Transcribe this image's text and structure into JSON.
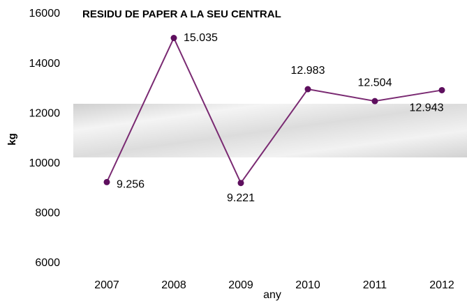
{
  "chart_data": {
    "type": "line",
    "title": "RESIDU DE PAPER A LA SEU CENTRAL",
    "x_label": "any",
    "y_label": "kg",
    "categories": [
      "2007",
      "2008",
      "2009",
      "2010",
      "2011",
      "2012"
    ],
    "series": [
      {
        "name": "kg",
        "color": "#7a2a72",
        "marker_color": "#5e0f5e",
        "values": [
          9256,
          15035,
          9221,
          12983,
          12504,
          12943
        ],
        "value_labels": [
          "9.256",
          "15.035",
          "9.221",
          "12.983",
          "12.504",
          "12.943"
        ]
      }
    ],
    "ylim": [
      6000,
      16000
    ],
    "yticks": [
      6000,
      8000,
      10000,
      12000,
      14000,
      16000
    ],
    "grid": false,
    "legend": false
  }
}
